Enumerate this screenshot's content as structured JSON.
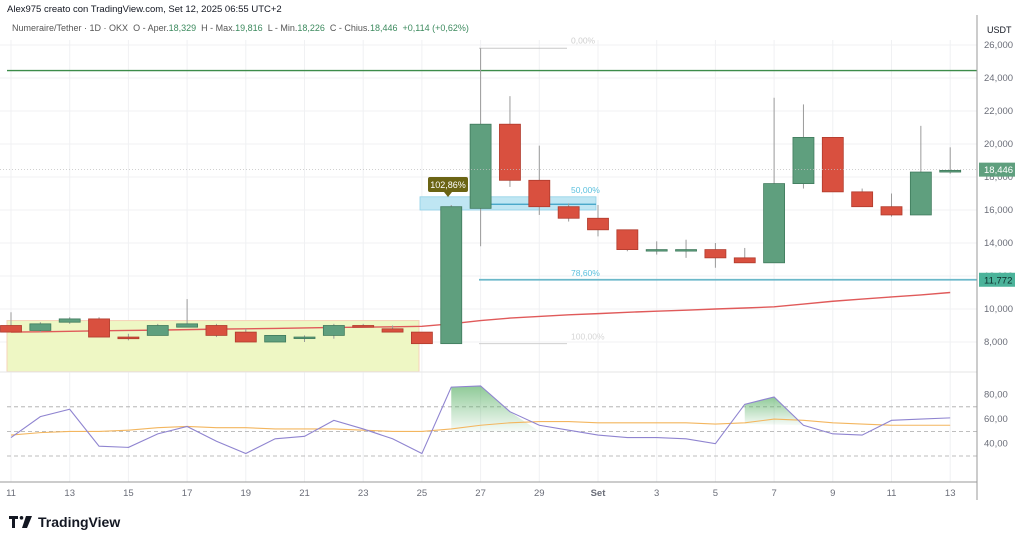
{
  "header": {
    "credit": "Alex975 creato con TradingView.com, Set 12, 2025 06:55 UTC+2",
    "symbol": "Numeraire/Tether · 1D · OKX",
    "open_label": "O - Aper.",
    "open": "18,329",
    "high_label": "H - Max.",
    "high": "19,816",
    "low_label": "L - Min.",
    "low": "18,226",
    "close_label": "C - Chius.",
    "close": "18,446",
    "change": "+0,114 (+0,62%)"
  },
  "price_axis": {
    "currency": "USDT",
    "ticks": [
      "26,000",
      "24,000",
      "22,000",
      "20,000",
      "18,000",
      "16,000",
      "14,000",
      "12,000",
      "10,000",
      "8,000"
    ],
    "last_price_badge": "18,446",
    "level_badge": "11,772"
  },
  "rsi_axis": {
    "ticks": [
      "80,00",
      "60,00",
      "40,00"
    ]
  },
  "time_axis": {
    "ticks": [
      "11",
      "13",
      "15",
      "17",
      "19",
      "21",
      "23",
      "25",
      "27",
      "29",
      "Set",
      "3",
      "5",
      "7",
      "9",
      "11",
      "13"
    ]
  },
  "annotations": {
    "fib_0": "0,00%",
    "fib_50": "50,00%",
    "fib_786": "78,60%",
    "fib_100": "100,00%",
    "callout": "102,86%"
  },
  "branding": {
    "logo_text": "TradingView"
  },
  "colors": {
    "up": "#5f9f7e",
    "down": "#d9503f",
    "ma": "#e05a5a",
    "resistance": "#3d8c4a",
    "fib_blue": "#5bc0de",
    "rsi": "#8f84d0",
    "rsi_ma": "#f3b65f",
    "zone": "#eef7c4"
  },
  "chart_data": {
    "type": "candlestick",
    "title": "Numeraire/Tether · 1D · OKX",
    "ylabel": "USDT",
    "ylim": [
      7000,
      27000
    ],
    "categories": [
      "Aug 11",
      "Aug 12",
      "Aug 13",
      "Aug 14",
      "Aug 15",
      "Aug 16",
      "Aug 17",
      "Aug 18",
      "Aug 19",
      "Aug 20",
      "Aug 21",
      "Aug 22",
      "Aug 23",
      "Aug 24",
      "Aug 25",
      "Aug 26",
      "Aug 27",
      "Aug 28",
      "Aug 29",
      "Aug 30",
      "Aug 31",
      "Sep 1",
      "Sep 2",
      "Sep 3",
      "Sep 4",
      "Sep 5",
      "Sep 6",
      "Sep 7",
      "Sep 8",
      "Sep 9",
      "Sep 10",
      "Sep 11",
      "Sep 12"
    ],
    "series": [
      {
        "name": "OHLC",
        "values": [
          [
            9.0,
            9.8,
            8.6,
            8.6
          ],
          [
            8.7,
            9.2,
            8.6,
            9.1
          ],
          [
            9.2,
            9.5,
            9.1,
            9.4
          ],
          [
            9.4,
            9.5,
            8.3,
            8.3
          ],
          [
            8.3,
            8.5,
            8.1,
            8.2
          ],
          [
            8.4,
            9.1,
            8.4,
            9.0
          ],
          [
            8.9,
            10.6,
            8.9,
            9.1
          ],
          [
            9.0,
            9.1,
            8.3,
            8.4
          ],
          [
            8.6,
            8.8,
            8.0,
            8.0
          ],
          [
            8.0,
            8.4,
            8.0,
            8.4
          ],
          [
            8.3,
            8.4,
            8.0,
            8.3
          ],
          [
            8.4,
            9.1,
            8.2,
            9.0
          ],
          [
            9.0,
            9.1,
            8.9,
            8.9
          ],
          [
            8.8,
            9.0,
            8.6,
            8.6
          ],
          [
            8.6,
            8.6,
            7.9,
            7.9
          ],
          [
            7.9,
            16.3,
            7.9,
            16.2
          ],
          [
            16.1,
            25.8,
            13.8,
            21.2
          ],
          [
            21.2,
            22.9,
            17.4,
            17.8
          ],
          [
            17.8,
            19.9,
            15.7,
            16.2
          ],
          [
            16.2,
            16.4,
            15.3,
            15.5
          ],
          [
            15.5,
            16.3,
            14.4,
            14.8
          ],
          [
            14.8,
            14.8,
            13.5,
            13.6
          ],
          [
            13.6,
            14.1,
            13.3,
            13.6
          ],
          [
            13.6,
            14.2,
            13.1,
            13.6
          ],
          [
            13.6,
            14.0,
            12.5,
            13.1
          ],
          [
            13.1,
            13.7,
            12.8,
            12.8
          ],
          [
            12.8,
            22.8,
            12.8,
            17.6
          ],
          [
            17.6,
            22.4,
            17.3,
            20.4
          ],
          [
            20.4,
            20.4,
            17.1,
            17.1
          ],
          [
            17.1,
            17.3,
            16.2,
            16.2
          ],
          [
            16.2,
            17.0,
            15.6,
            15.7
          ],
          [
            15.7,
            21.1,
            15.7,
            18.3
          ],
          [
            18.3,
            19.8,
            18.2,
            18.4
          ]
        ]
      },
      {
        "name": "MA",
        "values": [
          8.6,
          8.62,
          8.65,
          8.68,
          8.7,
          8.72,
          8.75,
          8.78,
          8.8,
          8.82,
          8.85,
          8.88,
          8.9,
          8.92,
          8.95,
          9.1,
          9.3,
          9.45,
          9.55,
          9.65,
          9.72,
          9.8,
          9.87,
          9.93,
          10.0,
          10.06,
          10.13,
          10.3,
          10.47,
          10.6,
          10.73,
          10.85,
          11.0
        ]
      },
      {
        "name": "RSI",
        "values": [
          45,
          62,
          68,
          38,
          37,
          48,
          54,
          42,
          32,
          44,
          46,
          59,
          52,
          44,
          32,
          86,
          87,
          66,
          55,
          51,
          47,
          45,
          45,
          44,
          40,
          72,
          78,
          55,
          48,
          47,
          59,
          60,
          61
        ]
      },
      {
        "name": "RSI MA",
        "values": [
          47,
          49,
          50,
          50,
          51,
          53,
          54,
          53,
          53,
          52,
          52,
          52,
          51,
          50,
          50,
          52,
          55,
          57,
          58,
          58,
          57,
          57,
          57,
          57,
          56,
          57,
          60,
          59,
          57,
          56,
          55,
          55,
          55
        ]
      }
    ],
    "horizontal_levels": [
      {
        "value": 24500,
        "label": "resistance"
      },
      {
        "value": 11772,
        "label": "78,60%"
      }
    ],
    "fib_levels": [
      {
        "pct": "0,00%",
        "value": 25800
      },
      {
        "pct": "50,00%",
        "value": 16300
      },
      {
        "pct": "78,60%",
        "value": 11772
      },
      {
        "pct": "100,00%",
        "value": 7900
      }
    ],
    "rsi_ylim": [
      20,
      95
    ],
    "rsi_bands": [
      70,
      50,
      30
    ]
  }
}
